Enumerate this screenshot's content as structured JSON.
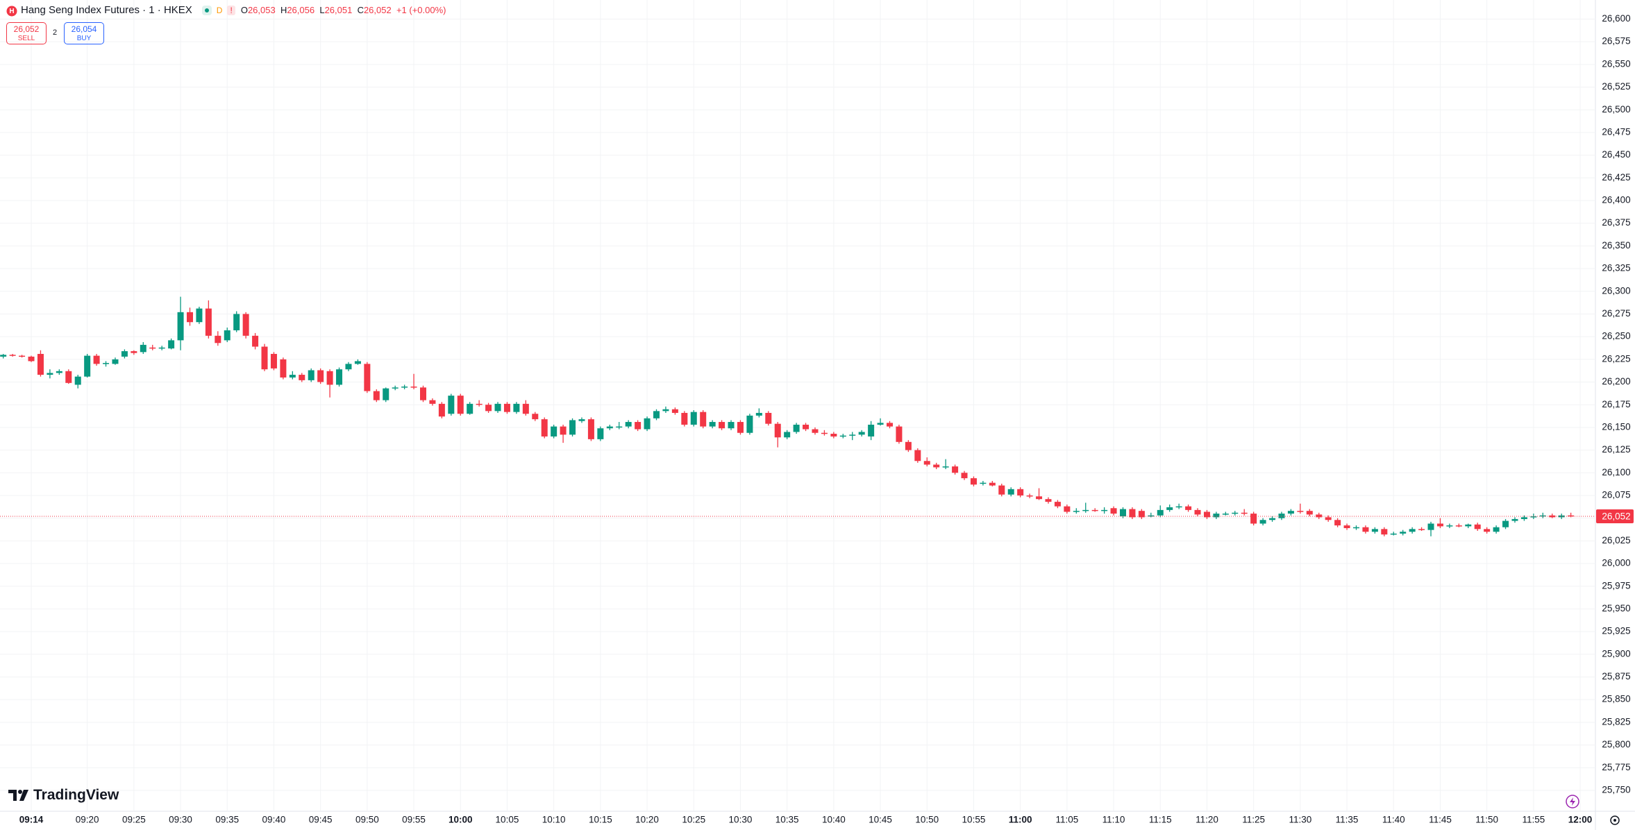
{
  "header": {
    "title": "Hang Seng Index Futures · 1 · HKEX",
    "flag_d": "D",
    "flag_warn": "!",
    "o": "O",
    "o_val": "26,053",
    "h": "H",
    "h_val": "26,056",
    "l": "L",
    "l_val": "26,051",
    "c": "C",
    "c_val": "26,052",
    "change": "+1 (+0.00%)",
    "sell_price": "26,052",
    "sell": "SELL",
    "spread": "2",
    "buy_price": "26,054",
    "buy": "BUY"
  },
  "footer": {
    "logo": "TradingView"
  },
  "chart_data": {
    "type": "candlestick",
    "up_color": "#089981",
    "down_color": "#f23645",
    "grid": true,
    "categories": [
      null,
      null,
      null,
      "09:14",
      null,
      null,
      null,
      null,
      null,
      "09:20",
      null,
      null,
      null,
      null,
      "09:25",
      null,
      null,
      null,
      null,
      "09:30",
      null,
      null,
      null,
      null,
      "09:35",
      null,
      null,
      null,
      null,
      "09:40",
      null,
      null,
      null,
      null,
      "09:45",
      null,
      null,
      null,
      null,
      "09:50",
      null,
      null,
      null,
      null,
      "09:55",
      null,
      null,
      null,
      null,
      "10:00",
      null,
      null,
      null,
      null,
      "10:05",
      null,
      null,
      null,
      null,
      "10:10",
      null,
      null,
      null,
      null,
      "10:15",
      null,
      null,
      null,
      null,
      "10:20",
      null,
      null,
      null,
      null,
      "10:25",
      null,
      null,
      null,
      null,
      "10:30",
      null,
      null,
      null,
      null,
      "10:35",
      null,
      null,
      null,
      null,
      "10:40",
      null,
      null,
      null,
      null,
      "10:45",
      null,
      null,
      null,
      null,
      "10:50",
      null,
      null,
      null,
      null,
      "10:55",
      null,
      null,
      null,
      null,
      "11:00",
      null,
      null,
      null,
      null,
      "11:05",
      null,
      null,
      null,
      null,
      "11:10",
      null,
      null,
      null,
      null,
      "11:15",
      null,
      null,
      null,
      null,
      "11:20",
      null,
      null,
      null,
      null,
      "11:25",
      null,
      null,
      null,
      null,
      "11:30",
      null,
      null,
      null,
      null,
      "11:35",
      null,
      null,
      null,
      null,
      "11:40",
      null,
      null,
      null,
      null,
      "11:45",
      null,
      null,
      null,
      null,
      "11:50",
      null,
      null,
      null,
      null,
      "11:55",
      null,
      null,
      null,
      null,
      "12:00"
    ],
    "open": [
      26228,
      26230,
      26229,
      26228,
      26231,
      26208,
      26210,
      26212,
      26197,
      26206,
      26229,
      26220,
      26220,
      26228,
      26234,
      26233,
      26238,
      26237,
      26237,
      26246,
      26277,
      26266,
      26281,
      26251,
      26246,
      26257,
      26275,
      26251,
      26239,
      26231,
      26225,
      26205,
      26208,
      26202,
      26213,
      26212,
      26197,
      26214,
      26220,
      26220,
      26190,
      26180,
      26193,
      26194,
      26195,
      26194,
      26180,
      26176,
      26165,
      26185,
      26165,
      26176,
      26175,
      26168,
      26176,
      26167,
      26176,
      26165,
      26159,
      26140,
      26151,
      26142,
      26157,
      26159,
      26137,
      26149,
      26151,
      26151,
      26156,
      26148,
      26160,
      26168,
      26170,
      26166,
      26153,
      26167,
      26151,
      26156,
      26149,
      26156,
      26144,
      26163,
      26166,
      26154,
      26139,
      26145,
      26153,
      26148,
      26144,
      26143,
      26140,
      26141,
      26142,
      26140,
      26153,
      26155,
      26151,
      26134,
      26125,
      26113,
      26109,
      26106,
      26107,
      26100,
      26094,
      26088,
      26089,
      26086,
      26076,
      26082,
      26075,
      26074,
      26071,
      26068,
      26063,
      26057,
      26058,
      26059,
      26058,
      26061,
      26052,
      26060,
      26058,
      26053,
      26053,
      26059,
      26062,
      26063,
      26059,
      26057,
      26051,
      26055,
      26055,
      26056,
      26055,
      26044,
      26048,
      26050,
      26055,
      26058,
      26058,
      26054,
      26051,
      26048,
      26042,
      26039,
      26040,
      26035,
      26038,
      26032,
      26033,
      26035,
      26038,
      26037,
      26044,
      26041,
      26042,
      26041,
      26043,
      26038,
      26035,
      26040,
      26047,
      26049,
      26051,
      26052,
      26053,
      26051,
      26053,
      null
    ],
    "high": [
      26231,
      26231,
      26230,
      26229,
      26235,
      26214,
      26214,
      26214,
      26208,
      26231,
      26231,
      26223,
      26227,
      26236,
      26235,
      26244,
      26241,
      26240,
      26248,
      26294,
      26282,
      26283,
      26290,
      26256,
      26260,
      26278,
      26277,
      26254,
      26242,
      26233,
      26227,
      26212,
      26210,
      26215,
      26215,
      26214,
      26216,
      26222,
      26225,
      26222,
      26192,
      26194,
      26196,
      26197,
      26209,
      26196,
      26182,
      26178,
      26187,
      26187,
      26178,
      26180,
      26177,
      26178,
      26178,
      26178,
      26180,
      26167,
      26161,
      26153,
      26153,
      26160,
      26161,
      26161,
      26151,
      26153,
      26156,
      26158,
      26158,
      26162,
      26170,
      26173,
      26172,
      26168,
      26169,
      26169,
      26158,
      26158,
      26158,
      26158,
      26165,
      26171,
      26168,
      26156,
      26147,
      26155,
      26155,
      26150,
      26147,
      26145,
      26143,
      26145,
      26147,
      26157,
      26160,
      26157,
      26153,
      26136,
      26127,
      26117,
      26111,
      26115,
      26109,
      26102,
      26096,
      26091,
      26091,
      26088,
      26084,
      26084,
      26077,
      26083,
      26073,
      26070,
      26065,
      26061,
      26067,
      26061,
      26062,
      26063,
      26062,
      26062,
      26060,
      26056,
      26064,
      26065,
      26066,
      26065,
      26061,
      26059,
      26057,
      26057,
      26058,
      26060,
      26057,
      26050,
      26052,
      26057,
      26060,
      26066,
      26060,
      26056,
      26053,
      26050,
      26044,
      26042,
      26042,
      26040,
      26040,
      26035,
      26037,
      26040,
      26040,
      26046,
      26050,
      26044,
      26044,
      26044,
      26045,
      26040,
      26042,
      26049,
      26051,
      26053,
      26055,
      26056,
      26055,
      26055,
      26056,
      null
    ],
    "low": [
      26226,
      26228,
      26227,
      26222,
      26206,
      26204,
      26208,
      26198,
      26193,
      26205,
      26218,
      26217,
      26219,
      26226,
      26230,
      26231,
      26235,
      26235,
      26236,
      26235,
      26262,
      26264,
      26248,
      26240,
      26244,
      26255,
      26248,
      26236,
      26212,
      26213,
      26203,
      26203,
      26200,
      26200,
      26198,
      26183,
      26195,
      26212,
      26219,
      26188,
      26178,
      26178,
      26191,
      26192,
      26192,
      26178,
      26174,
      26160,
      26163,
      26163,
      26164,
      26173,
      26166,
      26166,
      26165,
      26165,
      26163,
      26157,
      26138,
      26138,
      26133,
      26140,
      26155,
      26135,
      26135,
      26147,
      26148,
      26149,
      26146,
      26146,
      26158,
      26166,
      26164,
      26151,
      26151,
      26149,
      26149,
      26147,
      26147,
      26142,
      26142,
      26161,
      26152,
      26128,
      26137,
      26143,
      26146,
      26142,
      26141,
      26138,
      26138,
      26136,
      26140,
      26136,
      26152,
      26149,
      26132,
      26123,
      26111,
      26107,
      26104,
      26104,
      26098,
      26092,
      26085,
      26086,
      26085,
      26074,
      26074,
      26073,
      26072,
      26070,
      26066,
      26061,
      26055,
      26055,
      26056,
      26057,
      26055,
      26053,
      26050,
      26049,
      26049,
      26051,
      26051,
      26057,
      26060,
      26057,
      26052,
      26049,
      26049,
      26053,
      26053,
      26053,
      26042,
      26042,
      26046,
      26048,
      26053,
      26055,
      26052,
      26049,
      26046,
      26040,
      26037,
      26037,
      26033,
      26033,
      26030,
      26031,
      26031,
      26033,
      26036,
      26030,
      26039,
      26039,
      26040,
      26039,
      26036,
      26033,
      26033,
      26038,
      26045,
      26047,
      26049,
      26050,
      26050,
      26049,
      26051,
      null
    ],
    "close": [
      26230,
      26229,
      26228,
      26223,
      26208,
      26210,
      26212,
      26199,
      26206,
      26229,
      26220,
      26221,
      26225,
      26234,
      26232,
      26241,
      26237,
      26238,
      26246,
      26277,
      26266,
      26281,
      26251,
      26243,
      26257,
      26275,
      26251,
      26239,
      26214,
      26215,
      26205,
      26208,
      26202,
      26213,
      26200,
      26197,
      26214,
      26220,
      26223,
      26190,
      26180,
      26193,
      26194,
      26195,
      26194,
      26180,
      26176,
      26162,
      26185,
      26165,
      26176,
      26175,
      26168,
      26176,
      26167,
      26176,
      26165,
      26159,
      26140,
      26151,
      26142,
      26158,
      26159,
      26137,
      26149,
      26151,
      26151,
      26156,
      26148,
      26160,
      26168,
      26170,
      26166,
      26153,
      26167,
      26151,
      26156,
      26149,
      26156,
      26144,
      26163,
      26166,
      26154,
      26139,
      26145,
      26153,
      26148,
      26144,
      26143,
      26140,
      26141,
      26142,
      26145,
      26153,
      26155,
      26151,
      26134,
      26125,
      26113,
      26109,
      26106,
      26107,
      26100,
      26094,
      26087,
      26089,
      26086,
      26076,
      26082,
      26075,
      26074,
      26071,
      26068,
      26063,
      26057,
      26058,
      26059,
      26058,
      26059,
      26055,
      26060,
      26051,
      26051,
      26053,
      26059,
      26062,
      26063,
      26059,
      26054,
      26051,
      26055,
      26055,
      26056,
      26055,
      26044,
      26048,
      26050,
      26055,
      26058,
      26057,
      26054,
      26051,
      26048,
      26042,
      26039,
      26040,
      26035,
      26038,
      26032,
      26033,
      26035,
      26038,
      26037,
      26044,
      26041,
      26042,
      26041,
      26043,
      26038,
      26035,
      26040,
      26047,
      26049,
      26051,
      26052,
      26053,
      26051,
      26053,
      26052,
      null
    ],
    "last_price": {
      "value": 26052,
      "label": "26,052"
    },
    "ylim": [
      25727,
      26621
    ],
    "yticks": [
      {
        "value": 25750,
        "label": "25,750"
      },
      {
        "value": 25775,
        "label": "25,775"
      },
      {
        "value": 25800,
        "label": "25,800"
      },
      {
        "value": 25825,
        "label": "25,825"
      },
      {
        "value": 25850,
        "label": "25,850"
      },
      {
        "value": 25875,
        "label": "25,875"
      },
      {
        "value": 25900,
        "label": "25,900"
      },
      {
        "value": 25925,
        "label": "25,925"
      },
      {
        "value": 25950,
        "label": "25,950"
      },
      {
        "value": 25975,
        "label": "25,975"
      },
      {
        "value": 26000,
        "label": "26,000"
      },
      {
        "value": 26025,
        "label": "26,025"
      },
      {
        "value": 26050,
        "label": "26,050"
      },
      {
        "value": 26075,
        "label": "26,075"
      },
      {
        "value": 26100,
        "label": "26,100"
      },
      {
        "value": 26125,
        "label": "26,125"
      },
      {
        "value": 26150,
        "label": "26,150"
      },
      {
        "value": 26175,
        "label": "26,175"
      },
      {
        "value": 26200,
        "label": "26,200"
      },
      {
        "value": 26225,
        "label": "26,225"
      },
      {
        "value": 26250,
        "label": "26,250"
      },
      {
        "value": 26275,
        "label": "26,275"
      },
      {
        "value": 26300,
        "label": "26,300"
      },
      {
        "value": 26325,
        "label": "26,325"
      },
      {
        "value": 26350,
        "label": "26,350"
      },
      {
        "value": 26375,
        "label": "26,375"
      },
      {
        "value": 26400,
        "label": "26,400"
      },
      {
        "value": 26425,
        "label": "26,425"
      },
      {
        "value": 26450,
        "label": "26,450"
      },
      {
        "value": 26475,
        "label": "26,475"
      },
      {
        "value": 26500,
        "label": "26,500"
      },
      {
        "value": 26525,
        "label": "26,525"
      },
      {
        "value": 26550,
        "label": "26,550"
      },
      {
        "value": 26575,
        "label": "26,575"
      },
      {
        "value": 26600,
        "label": "26,600"
      }
    ]
  }
}
